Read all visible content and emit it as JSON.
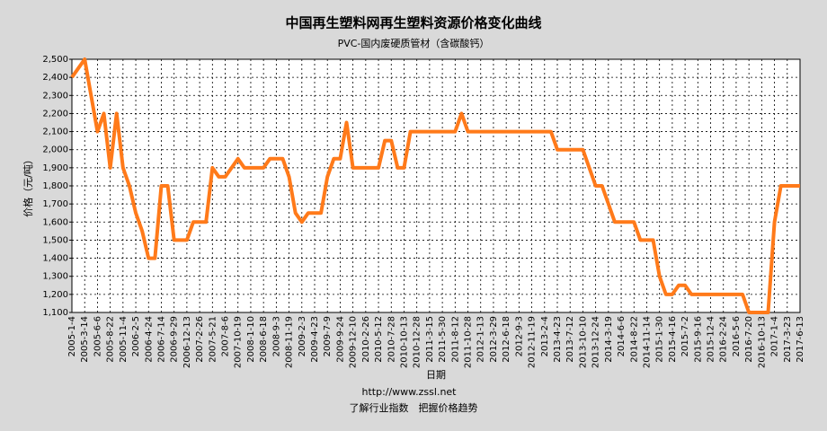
{
  "chart_data": {
    "type": "line",
    "title": "中国再生塑料网再生塑料资源价格变化曲线",
    "subtitle": "PVC-国内废硬质管材（含碳酸钙）",
    "y_label": "价格（元/吨）",
    "x_label": "日期",
    "footer_url": "http://www.zssl.net",
    "footer_slogan": "了解行业指数　把握价格趋势",
    "categories": [
      "2005-1-4",
      null,
      "2005-3-14",
      null,
      "2005-6-6",
      null,
      "2005-8-22",
      null,
      "2005-11-4",
      null,
      "2006-2-5",
      null,
      "2006-4-24",
      null,
      "2006-7-14",
      null,
      "2006-9-29",
      null,
      "2006-12-13",
      null,
      "2007-2-26",
      null,
      "2007-5-21",
      null,
      "2007-8-6",
      null,
      "2007-10-19",
      null,
      "2008-1-10",
      null,
      "2008-6-18",
      null,
      "2008-9-3",
      null,
      "2008-11-19",
      null,
      "2009-2-3",
      null,
      "2009-4-23",
      null,
      "2009-7-9",
      null,
      "2009-9-24",
      null,
      "2009-12-10",
      null,
      "2010-2-26",
      null,
      "2010-5-12",
      null,
      "2010-7-28",
      null,
      "2010-10-13",
      null,
      "2010-12-28",
      null,
      "2011-3-15",
      null,
      "2011-5-30",
      null,
      "2011-8-12",
      null,
      "2011-10-28",
      null,
      "2012-1-13",
      null,
      "2012-3-29",
      null,
      "2012-6-18",
      null,
      "2012-9-3",
      null,
      "2012-11-19",
      null,
      "2013-2-4",
      null,
      "2013-4-23",
      null,
      "2013-7-12",
      null,
      "2013-10-10",
      null,
      "2013-12-24",
      null,
      "2014-3-19",
      null,
      "2014-6-6",
      null,
      "2014-8-22",
      null,
      "2014-11-14",
      null,
      "2015-1-30",
      null,
      "2015-4-16",
      null,
      "2015-7-2",
      null,
      "2015-9-16",
      null,
      "2015-12-4",
      null,
      "2016-2-24",
      null,
      "2016-5-6",
      null,
      "2016-7-20",
      null,
      "2016-10-13",
      null,
      "2017-1-4",
      null,
      "2017-3-23",
      null,
      "2017-6-13"
    ],
    "series": [
      {
        "name": "PVC-国内废硬质管材（含碳酸钙）",
        "color": "#ff7a1a",
        "values": [
          2400,
          2450,
          2500,
          2300,
          2100,
          2200,
          1900,
          2200,
          1900,
          1800,
          1650,
          1550,
          1400,
          1400,
          1800,
          1800,
          1500,
          1500,
          1500,
          1600,
          1600,
          1600,
          1900,
          1850,
          1850,
          1900,
          1950,
          1900,
          1900,
          1900,
          1900,
          1950,
          1950,
          1950,
          1850,
          1650,
          1600,
          1650,
          1650,
          1650,
          1850,
          1950,
          1950,
          2150,
          1900,
          1900,
          1900,
          1900,
          1900,
          2050,
          2050,
          1900,
          1900,
          2100,
          2100,
          2100,
          2100,
          2100,
          2100,
          2100,
          2100,
          2200,
          2100,
          2100,
          2100,
          2100,
          2100,
          2100,
          2100,
          2100,
          2100,
          2100,
          2100,
          2100,
          2100,
          2100,
          2000,
          2000,
          2000,
          2000,
          2000,
          1900,
          1800,
          1800,
          1700,
          1600,
          1600,
          1600,
          1600,
          1500,
          1500,
          1500,
          1300,
          1200,
          1200,
          1250,
          1250,
          1200,
          1200,
          1200,
          1200,
          1200,
          1200,
          1200,
          1200,
          1200,
          1100,
          1100,
          1100,
          1100,
          1600,
          1800,
          1800,
          1800,
          1800
        ]
      }
    ],
    "ylim": [
      1100,
      2500
    ],
    "yticks": [
      {
        "value": 1100,
        "label": "1,100"
      },
      {
        "value": 1200,
        "label": "1,200"
      },
      {
        "value": 1300,
        "label": "1,300"
      },
      {
        "value": 1400,
        "label": "1,400"
      },
      {
        "value": 1500,
        "label": "1,500"
      },
      {
        "value": 1600,
        "label": "1,600"
      },
      {
        "value": 1700,
        "label": "1,700"
      },
      {
        "value": 1800,
        "label": "1,800"
      },
      {
        "value": 1900,
        "label": "1,900"
      },
      {
        "value": 2000,
        "label": "2,000"
      },
      {
        "value": 2100,
        "label": "2,100"
      },
      {
        "value": 2200,
        "label": "2,200"
      },
      {
        "value": 2300,
        "label": "2,300"
      },
      {
        "value": 2400,
        "label": "2,400"
      },
      {
        "value": 2500,
        "label": "2,500"
      }
    ],
    "grid": true
  }
}
